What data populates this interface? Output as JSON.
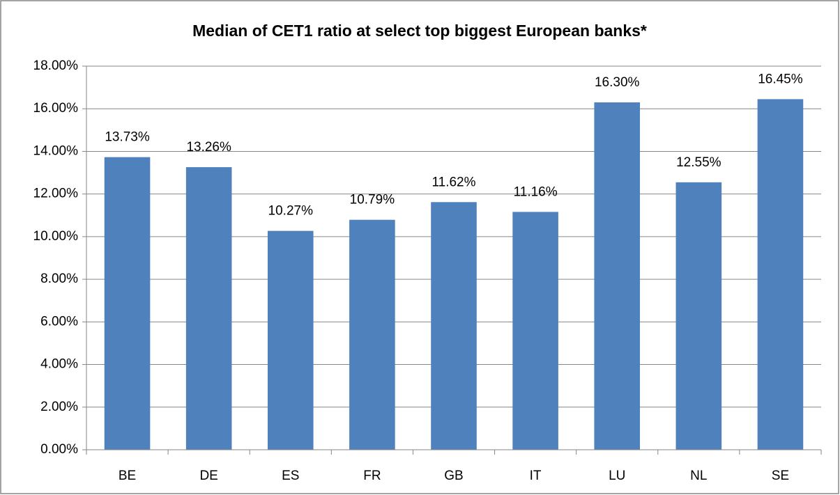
{
  "chart_data": {
    "type": "bar",
    "title": "Median of CET1 ratio at select top biggest European banks*",
    "categories": [
      "BE",
      "DE",
      "ES",
      "FR",
      "GB",
      "IT",
      "LU",
      "NL",
      "SE"
    ],
    "values": [
      13.73,
      13.26,
      10.27,
      10.79,
      11.62,
      11.16,
      16.3,
      12.55,
      16.45
    ],
    "value_labels": [
      "13.73%",
      "13.26%",
      "10.27%",
      "10.79%",
      "11.62%",
      "11.16%",
      "16.30%",
      "12.55%",
      "16.45%"
    ],
    "color": "#4f81bd",
    "ylim": [
      0,
      18
    ],
    "yticks": [
      {
        "value": 0,
        "label": "0.00%"
      },
      {
        "value": 2,
        "label": "2.00%"
      },
      {
        "value": 4,
        "label": "4.00%"
      },
      {
        "value": 6,
        "label": "6.00%"
      },
      {
        "value": 8,
        "label": "8.00%"
      },
      {
        "value": 10,
        "label": "10.00%"
      },
      {
        "value": 12,
        "label": "12.00%"
      },
      {
        "value": 14,
        "label": "14.00%"
      },
      {
        "value": 16,
        "label": "16.00%"
      },
      {
        "value": 18,
        "label": "18.00%"
      }
    ],
    "grid": true
  }
}
